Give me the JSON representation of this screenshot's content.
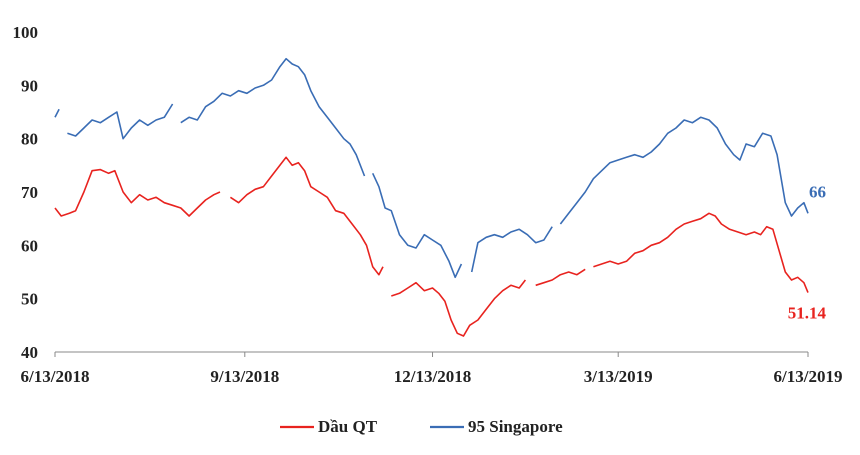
{
  "chart_data": {
    "type": "line",
    "title": "",
    "xlabel": "",
    "ylabel": "",
    "ylim": [
      40,
      100
    ],
    "yticks": [
      40,
      50,
      60,
      70,
      80,
      90,
      100
    ],
    "xlim": [
      "6/13/2018",
      "6/13/2019"
    ],
    "xticks": [
      "6/13/2018",
      "9/13/2018",
      "12/13/2018",
      "3/13/2019",
      "6/13/2019"
    ],
    "grid": false,
    "legend_position": "bottom",
    "series": [
      {
        "name": "Dầu QT",
        "color": "#e8231f",
        "end_label": "51.14",
        "points": [
          [
            "2018-06-13",
            67
          ],
          [
            "2018-06-16",
            65.5
          ],
          [
            "2018-06-20",
            66
          ],
          [
            "2018-06-23",
            66.5
          ],
          [
            "2018-06-27",
            70
          ],
          [
            "2018-07-01",
            74
          ],
          [
            "2018-07-05",
            74.2
          ],
          [
            "2018-07-09",
            73.5
          ],
          [
            "2018-07-12",
            74
          ],
          [
            "2018-07-16",
            70
          ],
          [
            "2018-07-20",
            68
          ],
          [
            "2018-07-24",
            69.5
          ],
          [
            "2018-07-28",
            68.5
          ],
          [
            "2018-08-01",
            69
          ],
          [
            "2018-08-05",
            68
          ],
          [
            "2018-08-09",
            67.5
          ],
          [
            "2018-08-13",
            67
          ],
          [
            "2018-08-17",
            65.5
          ],
          [
            "2018-08-21",
            67
          ],
          [
            "2018-08-25",
            68.5
          ],
          [
            "2018-08-29",
            69.5
          ],
          [
            "2018-09-01",
            70
          ],
          null,
          [
            "2018-09-06",
            69
          ],
          [
            "2018-09-10",
            68
          ],
          [
            "2018-09-14",
            69.5
          ],
          [
            "2018-09-18",
            70.5
          ],
          [
            "2018-09-22",
            71
          ],
          [
            "2018-09-26",
            73
          ],
          [
            "2018-09-30",
            75
          ],
          [
            "2018-10-03",
            76.5
          ],
          [
            "2018-10-06",
            75
          ],
          [
            "2018-10-09",
            75.5
          ],
          [
            "2018-10-12",
            74
          ],
          [
            "2018-10-15",
            71
          ],
          [
            "2018-10-19",
            70
          ],
          [
            "2018-10-23",
            69
          ],
          [
            "2018-10-27",
            66.5
          ],
          [
            "2018-10-31",
            66
          ],
          [
            "2018-11-04",
            64
          ],
          [
            "2018-11-08",
            62
          ],
          [
            "2018-11-11",
            60
          ],
          [
            "2018-11-14",
            56
          ],
          [
            "2018-11-17",
            54.5
          ],
          [
            "2018-11-19",
            56
          ],
          null,
          [
            "2018-11-23",
            50.5
          ],
          [
            "2018-11-27",
            51
          ],
          [
            "2018-12-01",
            52
          ],
          [
            "2018-12-05",
            53
          ],
          [
            "2018-12-09",
            51.5
          ],
          [
            "2018-12-13",
            52
          ],
          [
            "2018-12-16",
            51
          ],
          [
            "2018-12-19",
            49.5
          ],
          [
            "2018-12-22",
            46
          ],
          [
            "2018-12-25",
            43.5
          ],
          [
            "2018-12-28",
            43
          ],
          [
            "2018-12-31",
            45
          ],
          [
            "2019-01-04",
            46
          ],
          [
            "2019-01-08",
            48
          ],
          [
            "2019-01-12",
            50
          ],
          [
            "2019-01-16",
            51.5
          ],
          [
            "2019-01-20",
            52.5
          ],
          [
            "2019-01-24",
            52
          ],
          [
            "2019-01-27",
            53.5
          ],
          null,
          [
            "2019-02-01",
            52.5
          ],
          [
            "2019-02-05",
            53
          ],
          [
            "2019-02-09",
            53.5
          ],
          [
            "2019-02-13",
            54.5
          ],
          [
            "2019-02-17",
            55
          ],
          [
            "2019-02-21",
            54.5
          ],
          [
            "2019-02-25",
            55.5
          ],
          null,
          [
            "2019-03-01",
            56
          ],
          [
            "2019-03-05",
            56.5
          ],
          [
            "2019-03-09",
            57
          ],
          [
            "2019-03-13",
            56.5
          ],
          [
            "2019-03-17",
            57
          ],
          [
            "2019-03-21",
            58.5
          ],
          [
            "2019-03-25",
            59
          ],
          [
            "2019-03-29",
            60
          ],
          [
            "2019-04-02",
            60.5
          ],
          [
            "2019-04-06",
            61.5
          ],
          [
            "2019-04-10",
            63
          ],
          [
            "2019-04-14",
            64
          ],
          [
            "2019-04-18",
            64.5
          ],
          [
            "2019-04-22",
            65
          ],
          [
            "2019-04-26",
            66
          ],
          [
            "2019-04-29",
            65.5
          ],
          [
            "2019-05-02",
            64
          ],
          [
            "2019-05-06",
            63
          ],
          [
            "2019-05-10",
            62.5
          ],
          [
            "2019-05-14",
            62
          ],
          [
            "2019-05-18",
            62.5
          ],
          [
            "2019-05-21",
            62
          ],
          [
            "2019-05-24",
            63.5
          ],
          [
            "2019-05-27",
            63
          ],
          [
            "2019-05-30",
            59
          ],
          [
            "2019-06-02",
            55
          ],
          [
            "2019-06-05",
            53.5
          ],
          [
            "2019-06-08",
            54
          ],
          [
            "2019-06-11",
            53
          ],
          [
            "2019-06-13",
            51.14
          ]
        ]
      },
      {
        "name": "95 Singapore",
        "color": "#3a6db5",
        "end_label": "66",
        "points": [
          [
            "2018-06-13",
            84
          ],
          [
            "2018-06-15",
            85.5
          ],
          null,
          [
            "2018-06-19",
            81
          ],
          [
            "2018-06-23",
            80.5
          ],
          [
            "2018-06-27",
            82
          ],
          [
            "2018-07-01",
            83.5
          ],
          [
            "2018-07-05",
            83
          ],
          [
            "2018-07-09",
            84
          ],
          [
            "2018-07-13",
            85
          ],
          [
            "2018-07-16",
            80
          ],
          [
            "2018-07-20",
            82
          ],
          [
            "2018-07-24",
            83.5
          ],
          [
            "2018-07-28",
            82.5
          ],
          [
            "2018-08-01",
            83.5
          ],
          [
            "2018-08-05",
            84
          ],
          [
            "2018-08-09",
            86.5
          ],
          null,
          [
            "2018-08-13",
            83
          ],
          [
            "2018-08-17",
            84
          ],
          [
            "2018-08-21",
            83.5
          ],
          [
            "2018-08-25",
            86
          ],
          [
            "2018-08-29",
            87
          ],
          [
            "2018-09-02",
            88.5
          ],
          [
            "2018-09-06",
            88
          ],
          [
            "2018-09-10",
            89
          ],
          [
            "2018-09-14",
            88.5
          ],
          [
            "2018-09-18",
            89.5
          ],
          [
            "2018-09-22",
            90
          ],
          [
            "2018-09-26",
            91
          ],
          [
            "2018-09-30",
            93.5
          ],
          [
            "2018-10-03",
            95
          ],
          [
            "2018-10-06",
            94
          ],
          [
            "2018-10-09",
            93.5
          ],
          [
            "2018-10-12",
            92
          ],
          [
            "2018-10-15",
            89
          ],
          [
            "2018-10-19",
            86
          ],
          [
            "2018-10-23",
            84
          ],
          [
            "2018-10-27",
            82
          ],
          [
            "2018-10-31",
            80
          ],
          [
            "2018-11-03",
            79
          ],
          [
            "2018-11-06",
            77
          ],
          [
            "2018-11-10",
            73
          ],
          null,
          [
            "2018-11-14",
            73.5
          ],
          [
            "2018-11-17",
            71
          ],
          [
            "2018-11-20",
            67
          ],
          [
            "2018-11-23",
            66.5
          ],
          [
            "2018-11-27",
            62
          ],
          [
            "2018-12-01",
            60
          ],
          [
            "2018-12-05",
            59.5
          ],
          [
            "2018-12-09",
            62
          ],
          [
            "2018-12-13",
            61
          ],
          [
            "2018-12-17",
            60
          ],
          [
            "2018-12-21",
            57
          ],
          [
            "2018-12-24",
            54
          ],
          [
            "2018-12-27",
            56.5
          ],
          null,
          [
            "2019-01-01",
            55
          ],
          [
            "2019-01-04",
            60.5
          ],
          [
            "2019-01-08",
            61.5
          ],
          [
            "2019-01-12",
            62
          ],
          [
            "2019-01-16",
            61.5
          ],
          [
            "2019-01-20",
            62.5
          ],
          [
            "2019-01-24",
            63
          ],
          [
            "2019-01-28",
            62
          ],
          [
            "2019-02-01",
            60.5
          ],
          [
            "2019-02-05",
            61
          ],
          [
            "2019-02-09",
            63.5
          ],
          null,
          [
            "2019-02-13",
            64
          ],
          [
            "2019-02-17",
            66
          ],
          [
            "2019-02-21",
            68
          ],
          [
            "2019-02-25",
            70
          ],
          [
            "2019-03-01",
            72.5
          ],
          [
            "2019-03-05",
            74
          ],
          [
            "2019-03-09",
            75.5
          ],
          [
            "2019-03-13",
            76
          ],
          [
            "2019-03-17",
            76.5
          ],
          [
            "2019-03-21",
            77
          ],
          [
            "2019-03-25",
            76.5
          ],
          [
            "2019-03-29",
            77.5
          ],
          [
            "2019-04-02",
            79
          ],
          [
            "2019-04-06",
            81
          ],
          [
            "2019-04-10",
            82
          ],
          [
            "2019-04-14",
            83.5
          ],
          [
            "2019-04-18",
            83
          ],
          [
            "2019-04-22",
            84
          ],
          [
            "2019-04-26",
            83.5
          ],
          [
            "2019-04-30",
            82
          ],
          [
            "2019-05-04",
            79
          ],
          [
            "2019-05-08",
            77
          ],
          [
            "2019-05-11",
            76
          ],
          [
            "2019-05-14",
            79
          ],
          [
            "2019-05-18",
            78.5
          ],
          [
            "2019-05-22",
            81
          ],
          [
            "2019-05-26",
            80.5
          ],
          [
            "2019-05-29",
            77
          ],
          [
            "2019-06-02",
            68
          ],
          [
            "2019-06-05",
            65.5
          ],
          [
            "2019-06-08",
            67
          ],
          [
            "2019-06-11",
            68
          ],
          [
            "2019-06-13",
            66
          ]
        ]
      }
    ]
  }
}
